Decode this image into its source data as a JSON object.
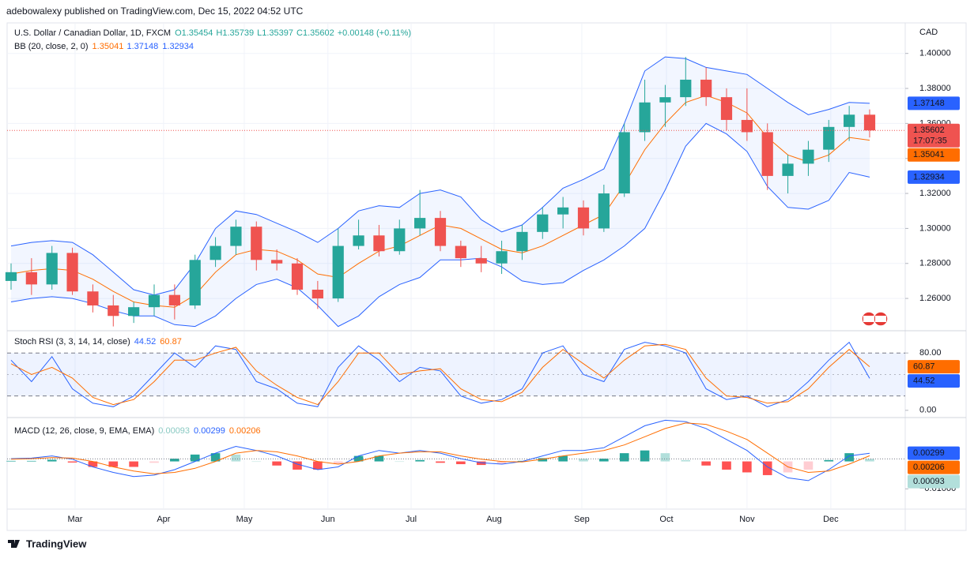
{
  "author_line": "adebowalexy published on TradingView.com, Dec 15, 2022 04:52 UTC",
  "footer": "TradingView",
  "chart_data": [
    {
      "type": "candlestick",
      "symbol": "U.S. Dollar / Canadian Dollar, 1D, FXCM",
      "ohlc_legend": [
        "O1.35454",
        "H1.35739",
        "L1.35397",
        "C1.35602",
        "+0.00148 (+0.11%)"
      ],
      "currency": "CAD",
      "countdown": "17:07:35",
      "up_color": "#26a69a",
      "down_color": "#ef5350",
      "open": [
        1.27,
        1.275,
        1.268,
        1.286,
        1.264,
        1.256,
        1.25,
        1.255,
        1.262,
        1.256,
        1.282,
        1.29,
        1.301,
        1.282,
        1.28,
        1.265,
        1.26,
        1.29,
        1.296,
        1.287,
        1.3,
        1.306,
        1.29,
        1.283,
        1.28,
        1.287,
        1.298,
        1.308,
        1.312,
        1.3,
        1.32,
        1.355,
        1.372,
        1.375,
        1.385,
        1.375,
        1.362,
        1.355,
        1.33,
        1.337,
        1.345,
        1.358,
        1.365
      ],
      "high": [
        1.28,
        1.283,
        1.29,
        1.289,
        1.268,
        1.262,
        1.258,
        1.268,
        1.268,
        1.285,
        1.295,
        1.305,
        1.304,
        1.288,
        1.283,
        1.27,
        1.3,
        1.305,
        1.302,
        1.305,
        1.322,
        1.31,
        1.293,
        1.29,
        1.293,
        1.302,
        1.312,
        1.318,
        1.316,
        1.325,
        1.36,
        1.385,
        1.382,
        1.398,
        1.392,
        1.38,
        1.38,
        1.36,
        1.342,
        1.35,
        1.362,
        1.37,
        1.368
      ],
      "low": [
        1.265,
        1.262,
        1.265,
        1.262,
        1.252,
        1.244,
        1.246,
        1.25,
        1.248,
        1.254,
        1.278,
        1.285,
        1.276,
        1.276,
        1.262,
        1.254,
        1.258,
        1.288,
        1.284,
        1.285,
        1.296,
        1.287,
        1.278,
        1.275,
        1.274,
        1.282,
        1.294,
        1.3,
        1.296,
        1.298,
        1.318,
        1.35,
        1.358,
        1.37,
        1.37,
        1.356,
        1.35,
        1.322,
        1.32,
        1.33,
        1.338,
        1.35,
        1.352
      ],
      "close": [
        1.275,
        1.268,
        1.286,
        1.264,
        1.256,
        1.25,
        1.255,
        1.262,
        1.256,
        1.282,
        1.29,
        1.301,
        1.282,
        1.28,
        1.265,
        1.26,
        1.29,
        1.296,
        1.287,
        1.3,
        1.306,
        1.29,
        1.283,
        1.28,
        1.287,
        1.298,
        1.308,
        1.312,
        1.3,
        1.32,
        1.355,
        1.372,
        1.375,
        1.385,
        1.375,
        1.362,
        1.355,
        1.33,
        1.337,
        1.345,
        1.358,
        1.365,
        1.35602
      ],
      "bb": {
        "label": "BB (20, close, 2, 0)",
        "fill": "#2962ff",
        "basis": {
          "color": "#ff6d00",
          "values": [
            1.274,
            1.276,
            1.277,
            1.276,
            1.271,
            1.264,
            1.258,
            1.256,
            1.255,
            1.262,
            1.275,
            1.285,
            1.288,
            1.287,
            1.282,
            1.274,
            1.272,
            1.28,
            1.287,
            1.29,
            1.296,
            1.302,
            1.3,
            1.294,
            1.288,
            1.286,
            1.29,
            1.296,
            1.302,
            1.308,
            1.325,
            1.345,
            1.36,
            1.372,
            1.376,
            1.372,
            1.366,
            1.352,
            1.342,
            1.338,
            1.342,
            1.352,
            1.35041
          ]
        },
        "upper": {
          "color": "#2962ff",
          "values": [
            1.29,
            1.292,
            1.293,
            1.292,
            1.285,
            1.275,
            1.265,
            1.262,
            1.265,
            1.28,
            1.3,
            1.31,
            1.308,
            1.303,
            1.298,
            1.292,
            1.3,
            1.31,
            1.313,
            1.312,
            1.32,
            1.322,
            1.318,
            1.305,
            1.298,
            1.302,
            1.312,
            1.323,
            1.328,
            1.334,
            1.36,
            1.39,
            1.398,
            1.397,
            1.392,
            1.39,
            1.388,
            1.38,
            1.372,
            1.365,
            1.368,
            1.372,
            1.37148
          ]
        },
        "lower": {
          "color": "#2962ff",
          "values": [
            1.258,
            1.26,
            1.261,
            1.26,
            1.257,
            1.253,
            1.25,
            1.25,
            1.245,
            1.244,
            1.25,
            1.26,
            1.268,
            1.271,
            1.266,
            1.256,
            1.244,
            1.25,
            1.261,
            1.268,
            1.272,
            1.282,
            1.282,
            1.283,
            1.278,
            1.27,
            1.268,
            1.269,
            1.276,
            1.282,
            1.29,
            1.3,
            1.322,
            1.347,
            1.36,
            1.354,
            1.344,
            1.324,
            1.312,
            1.311,
            1.316,
            1.332,
            1.32934
          ]
        }
      },
      "ylim": [
        1.242,
        1.417
      ],
      "yticks": [
        {
          "value": 1.26,
          "label": "1.26000"
        },
        {
          "value": 1.28,
          "label": "1.28000"
        },
        {
          "value": 1.3,
          "label": "1.30000"
        },
        {
          "value": 1.32,
          "label": "1.32000"
        },
        {
          "value": 1.34,
          "label": "1.34000"
        },
        {
          "value": 1.36,
          "label": "1.36000"
        },
        {
          "value": 1.38,
          "label": "1.38000"
        },
        {
          "value": 1.4,
          "label": "1.40000"
        }
      ],
      "xticks": [
        {
          "value": 3.13,
          "label": "Mar"
        },
        {
          "value": 7.46,
          "label": "Apr"
        },
        {
          "value": 11.41,
          "label": "May"
        },
        {
          "value": 15.5,
          "label": "Jun"
        },
        {
          "value": 19.57,
          "label": "Jul"
        },
        {
          "value": 23.63,
          "label": "Aug"
        },
        {
          "value": 27.92,
          "label": "Sep"
        },
        {
          "value": 32.06,
          "label": "Oct"
        },
        {
          "value": 36.0,
          "label": "Nov"
        },
        {
          "value": 40.1,
          "label": "Dec"
        }
      ],
      "grid": true
    },
    {
      "type": "line",
      "label": "Stoch RSI (3, 3, 14, 14, close)",
      "series": [
        {
          "color": "#2962ff",
          "values": [
            70,
            40,
            75,
            30,
            10,
            5,
            20,
            50,
            80,
            60,
            90,
            85,
            40,
            30,
            10,
            5,
            60,
            90,
            70,
            40,
            60,
            55,
            20,
            10,
            15,
            30,
            80,
            90,
            50,
            40,
            85,
            95,
            90,
            80,
            30,
            15,
            20,
            5,
            15,
            40,
            70,
            95,
            44.52
          ]
        },
        {
          "color": "#ff6d00",
          "values": [
            65,
            50,
            60,
            45,
            18,
            8,
            15,
            40,
            70,
            70,
            80,
            88,
            55,
            35,
            18,
            8,
            40,
            80,
            80,
            50,
            55,
            58,
            30,
            15,
            12,
            25,
            60,
            85,
            65,
            45,
            70,
            90,
            92,
            85,
            45,
            20,
            18,
            10,
            12,
            30,
            60,
            85,
            60.87
          ]
        }
      ],
      "bands": [
        20,
        50,
        80
      ],
      "band_fill": "#2962ff",
      "ylim": [
        -9,
        110
      ],
      "yticks": [
        {
          "value": 80,
          "label": "80.00"
        },
        {
          "value": 0,
          "label": "0.00"
        }
      ]
    },
    {
      "type": "macd",
      "label": "MACD (12, 26, close, 9, EMA, EMA)",
      "histogram": {
        "colors": [
          "#26a69a",
          "#b2dfdb",
          "#ff5252",
          "#ffcdd2"
        ],
        "values": [
          0.0002,
          0.0002,
          0.0006,
          -0.0004,
          -0.002,
          -0.002,
          -0.002,
          -0.0005,
          0.001,
          0.0025,
          0.003,
          0.0025,
          0.0,
          -0.0015,
          -0.003,
          -0.003,
          -0.001,
          0.002,
          0.002,
          0.0,
          0.0005,
          -0.0005,
          -0.001,
          -0.0013,
          -0.001,
          0.0002,
          0.0012,
          0.002,
          0.001,
          0.001,
          0.003,
          0.004,
          0.003,
          0.0005,
          -0.0015,
          -0.003,
          -0.004,
          -0.005,
          -0.004,
          -0.003,
          0.0005,
          0.003,
          0.00093
        ]
      },
      "macd": {
        "color": "#2962ff",
        "values": [
          0.001,
          0.0012,
          0.002,
          0.0008,
          -0.002,
          -0.004,
          -0.0055,
          -0.005,
          -0.003,
          0.0,
          0.003,
          0.0055,
          0.004,
          0.002,
          -0.001,
          -0.003,
          -0.002,
          0.002,
          0.004,
          0.003,
          0.004,
          0.003,
          0.001,
          -0.0005,
          -0.001,
          0.0,
          0.002,
          0.004,
          0.004,
          0.005,
          0.009,
          0.013,
          0.015,
          0.0145,
          0.012,
          0.008,
          0.004,
          -0.002,
          -0.006,
          -0.007,
          -0.003,
          0.002,
          0.00299
        ]
      },
      "signal": {
        "color": "#ff6d00",
        "values": [
          0.0008,
          0.001,
          0.0014,
          0.0012,
          0.0,
          -0.002,
          -0.0035,
          -0.0045,
          -0.004,
          -0.0025,
          0.0,
          0.003,
          0.004,
          0.0035,
          0.002,
          0.0,
          -0.001,
          0.0,
          0.002,
          0.003,
          0.0035,
          0.0035,
          0.002,
          0.0008,
          0.0,
          -0.0002,
          0.0008,
          0.002,
          0.003,
          0.004,
          0.006,
          0.009,
          0.012,
          0.014,
          0.0135,
          0.011,
          0.008,
          0.003,
          -0.002,
          -0.004,
          -0.0035,
          -0.001,
          0.00206
        ]
      },
      "ylim": [
        -0.0171,
        0.0157
      ],
      "yticks": [
        {
          "value": -0.01,
          "label": "−0.01000"
        }
      ]
    }
  ]
}
